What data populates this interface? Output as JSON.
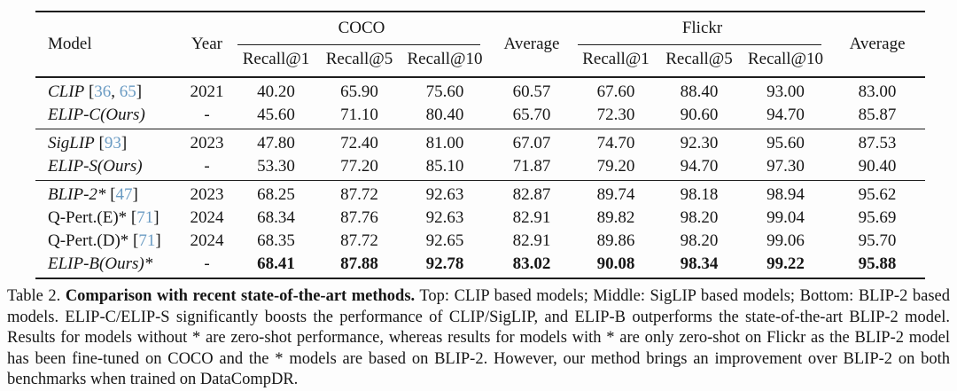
{
  "colors": {
    "citation": "#6a9bc3",
    "text": "#161616",
    "rule": "#1d1d1d",
    "background": "#fdfdfd"
  },
  "table": {
    "headers": {
      "model": "Model",
      "year": "Year",
      "coco": "COCO",
      "flickr": "Flickr",
      "average_coco": "Average",
      "average_flickr": "Average",
      "recall": [
        "Recall@1",
        "Recall@5",
        "Recall@10"
      ]
    },
    "sections": [
      {
        "name": "clip-based",
        "rows": [
          {
            "model": "CLIP",
            "citations": [
              "36",
              "65"
            ],
            "model_italic": true,
            "year": "2021",
            "values_bold": false,
            "values": [
              "40.20",
              "65.90",
              "75.60",
              "60.57",
              "67.60",
              "88.40",
              "93.00",
              "83.00"
            ]
          },
          {
            "model": "ELIP-C(Ours)",
            "citations": [],
            "model_italic": true,
            "year": "-",
            "values_bold": false,
            "values": [
              "45.60",
              "71.10",
              "80.40",
              "65.70",
              "72.30",
              "90.60",
              "94.70",
              "85.87"
            ]
          }
        ]
      },
      {
        "name": "siglip-based",
        "rows": [
          {
            "model": "SigLIP",
            "citations": [
              "93"
            ],
            "model_italic": true,
            "year": "2023",
            "values_bold": false,
            "values": [
              "47.80",
              "72.40",
              "81.00",
              "67.07",
              "74.70",
              "92.30",
              "95.60",
              "87.53"
            ]
          },
          {
            "model": "ELIP-S(Ours)",
            "citations": [],
            "model_italic": true,
            "year": "-",
            "values_bold": false,
            "values": [
              "53.30",
              "77.20",
              "85.10",
              "71.87",
              "79.20",
              "94.70",
              "97.30",
              "90.40"
            ]
          }
        ]
      },
      {
        "name": "blip2-based",
        "rows": [
          {
            "model": "BLIP-2*",
            "citations": [
              "47"
            ],
            "model_italic": true,
            "year": "2023",
            "values_bold": false,
            "values": [
              "68.25",
              "87.72",
              "92.63",
              "82.87",
              "89.74",
              "98.18",
              "98.94",
              "95.62"
            ]
          },
          {
            "model": "Q-Pert.(E)*",
            "citations": [
              "71"
            ],
            "model_italic": false,
            "year": "2024",
            "values_bold": false,
            "values": [
              "68.34",
              "87.76",
              "92.63",
              "82.91",
              "89.82",
              "98.20",
              "99.04",
              "95.69"
            ]
          },
          {
            "model": "Q-Pert.(D)*",
            "citations": [
              "71"
            ],
            "model_italic": false,
            "year": "2024",
            "values_bold": false,
            "values": [
              "68.35",
              "87.72",
              "92.65",
              "82.91",
              "89.86",
              "98.20",
              "99.06",
              "95.70"
            ]
          },
          {
            "model": "ELIP-B(Ours)*",
            "citations": [],
            "model_italic": true,
            "year": "-",
            "values_bold": true,
            "values": [
              "68.41",
              "87.88",
              "92.78",
              "83.02",
              "90.08",
              "98.34",
              "99.22",
              "95.88"
            ]
          }
        ]
      }
    ]
  },
  "caption": {
    "label": "Table 2.",
    "title": "Comparison with recent state-of-the-art methods.",
    "body": "Top: CLIP based models; Middle: SigLIP based models; Bottom: BLIP-2 based models. ELIP-C/ELIP-S significantly boosts the performance of CLIP/SigLIP, and ELIP-B outperforms the state-of-the-art BLIP-2 model. Results for models without * are zero-shot performance, whereas results for models with * are only zero-shot on Flickr as the BLIP-2 model has been fine-tuned on COCO and the * models are based on BLIP-2. However, our method brings an improvement over BLIP-2 on both benchmarks when trained on DataCompDR."
  }
}
